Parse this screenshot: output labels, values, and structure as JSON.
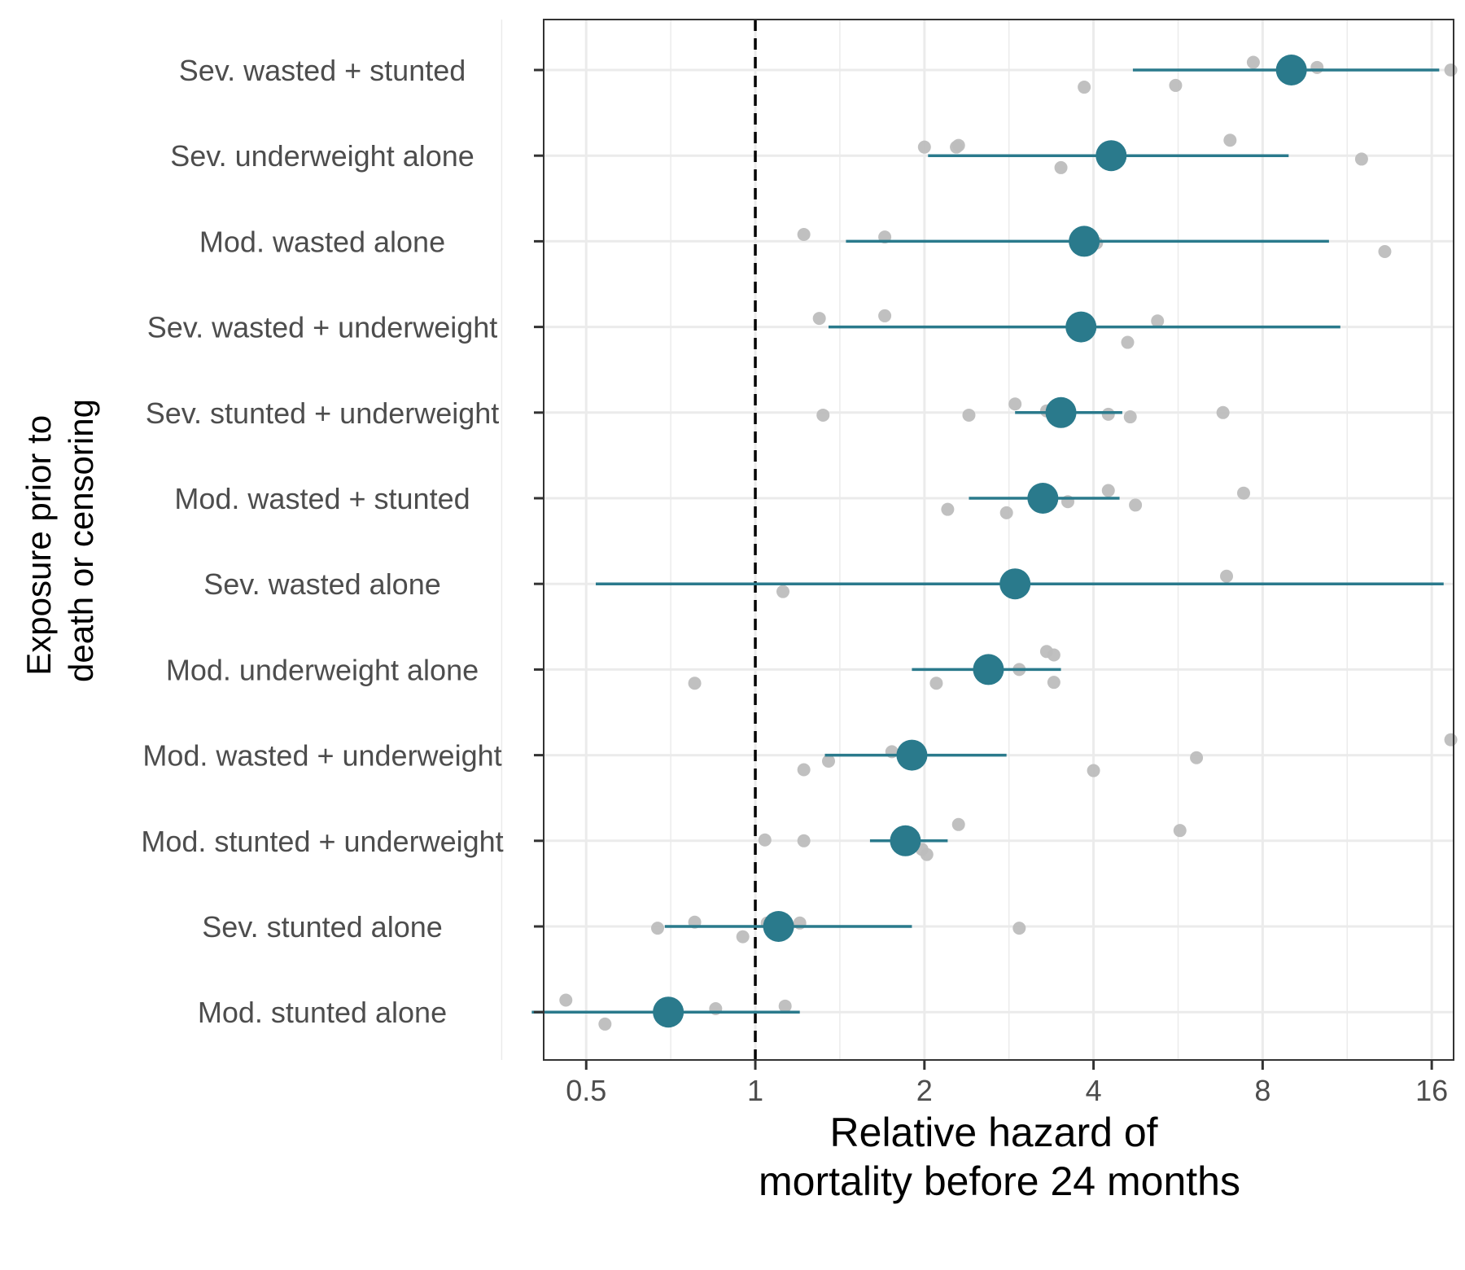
{
  "chart_data": {
    "type": "scatter",
    "x_scale": "log2",
    "xlim": [
      0.42,
      17.5
    ],
    "x_ticks": [
      0.5,
      1,
      2,
      4,
      8,
      16
    ],
    "x_tick_labels": [
      "0.5",
      "1",
      "2",
      "4",
      "8",
      "16"
    ],
    "reference_line_x": 1,
    "xlabel_lines": [
      "Relative hazard of",
      "mortality before 24 months"
    ],
    "ylabel_lines": [
      "Exposure prior to",
      "death or censoring"
    ],
    "grid": true,
    "colors": {
      "estimate": "#2a7a8c",
      "cohort_point": "#bdbdbd",
      "grid": "#ebebeb",
      "panel_border": "#333333"
    },
    "categories": [
      "Sev. wasted + stunted",
      "Sev. underweight alone",
      "Mod. wasted alone",
      "Sev. wasted + underweight",
      "Sev. stunted + underweight",
      "Mod. wasted + stunted",
      "Sev. wasted alone",
      "Mod. underweight alone",
      "Mod. wasted + underweight",
      "Mod. stunted + underweight",
      "Sev. stunted alone",
      "Mod. stunted alone"
    ],
    "estimates": [
      {
        "category": "Sev. wasted + stunted",
        "value": 9.0,
        "lower": 4.7,
        "upper": 16.5
      },
      {
        "category": "Sev. underweight alone",
        "value": 4.3,
        "lower": 2.03,
        "upper": 8.9
      },
      {
        "category": "Mod. wasted alone",
        "value": 3.85,
        "lower": 1.45,
        "upper": 10.5
      },
      {
        "category": "Sev. wasted + underweight",
        "value": 3.8,
        "lower": 1.35,
        "upper": 11.0
      },
      {
        "category": "Sev. stunted + underweight",
        "value": 3.5,
        "lower": 2.9,
        "upper": 4.5
      },
      {
        "category": "Mod. wasted + stunted",
        "value": 3.25,
        "lower": 2.4,
        "upper": 4.45
      },
      {
        "category": "Sev. wasted alone",
        "value": 2.9,
        "lower": 0.52,
        "upper": 16.8
      },
      {
        "category": "Mod. underweight alone",
        "value": 2.6,
        "lower": 1.9,
        "upper": 3.5
      },
      {
        "category": "Mod. wasted + underweight",
        "value": 1.9,
        "lower": 1.33,
        "upper": 2.8
      },
      {
        "category": "Mod. stunted + underweight",
        "value": 1.85,
        "lower": 1.6,
        "upper": 2.2
      },
      {
        "category": "Sev. stunted alone",
        "value": 1.1,
        "lower": 0.69,
        "upper": 1.9
      },
      {
        "category": "Mod. stunted alone",
        "value": 0.7,
        "lower": 0.4,
        "upper": 1.2
      }
    ],
    "cohort_points": [
      {
        "category": "Sev. wasted + stunted",
        "values": [
          {
            "x": 7.7,
            "offset": 0.09
          },
          {
            "x": 10.0,
            "offset": 0.03
          },
          {
            "x": 3.85,
            "offset": -0.2
          },
          {
            "x": 5.6,
            "offset": -0.18
          },
          {
            "x": 17.3,
            "offset": 0.0
          }
        ]
      },
      {
        "category": "Sev. underweight alone",
        "values": [
          {
            "x": 2.0,
            "offset": 0.1
          },
          {
            "x": 2.3,
            "offset": 0.12
          },
          {
            "x": 2.28,
            "offset": 0.1
          },
          {
            "x": 7.0,
            "offset": 0.18
          },
          {
            "x": 3.5,
            "offset": -0.14
          },
          {
            "x": 12.0,
            "offset": -0.04
          }
        ]
      },
      {
        "category": "Mod. wasted alone",
        "values": [
          {
            "x": 1.22,
            "offset": 0.08
          },
          {
            "x": 1.7,
            "offset": 0.05
          },
          {
            "x": 4.05,
            "offset": -0.02
          },
          {
            "x": 13.2,
            "offset": -0.12
          }
        ]
      },
      {
        "category": "Sev. wasted + underweight",
        "values": [
          {
            "x": 1.3,
            "offset": 0.1
          },
          {
            "x": 1.7,
            "offset": 0.13
          },
          {
            "x": 5.2,
            "offset": 0.07
          },
          {
            "x": 4.6,
            "offset": -0.18
          }
        ]
      },
      {
        "category": "Sev. stunted + underweight",
        "values": [
          {
            "x": 1.32,
            "offset": -0.03
          },
          {
            "x": 2.4,
            "offset": -0.03
          },
          {
            "x": 2.9,
            "offset": 0.1
          },
          {
            "x": 3.3,
            "offset": 0.02
          },
          {
            "x": 4.25,
            "offset": -0.02
          },
          {
            "x": 4.65,
            "offset": -0.05
          },
          {
            "x": 6.8,
            "offset": 0.0
          }
        ]
      },
      {
        "category": "Mod. wasted + stunted",
        "values": [
          {
            "x": 2.2,
            "offset": -0.13
          },
          {
            "x": 2.8,
            "offset": -0.17
          },
          {
            "x": 3.6,
            "offset": -0.04
          },
          {
            "x": 4.25,
            "offset": 0.09
          },
          {
            "x": 4.75,
            "offset": -0.08
          },
          {
            "x": 7.4,
            "offset": 0.06
          }
        ]
      },
      {
        "category": "Sev. wasted alone",
        "values": [
          {
            "x": 1.12,
            "offset": -0.09
          },
          {
            "x": 6.9,
            "offset": 0.09
          }
        ]
      },
      {
        "category": "Mod. underweight alone",
        "values": [
          {
            "x": 0.78,
            "offset": -0.16
          },
          {
            "x": 2.1,
            "offset": -0.16
          },
          {
            "x": 2.95,
            "offset": 0.0
          },
          {
            "x": 3.3,
            "offset": 0.21
          },
          {
            "x": 3.4,
            "offset": 0.17
          },
          {
            "x": 3.4,
            "offset": -0.15
          }
        ]
      },
      {
        "category": "Mod. wasted + underweight",
        "values": [
          {
            "x": 1.22,
            "offset": -0.17
          },
          {
            "x": 1.35,
            "offset": -0.07
          },
          {
            "x": 1.75,
            "offset": 0.04
          },
          {
            "x": 4.0,
            "offset": -0.18
          },
          {
            "x": 6.1,
            "offset": -0.03
          },
          {
            "x": 17.3,
            "offset": 0.18
          }
        ]
      },
      {
        "category": "Mod. stunted + underweight",
        "values": [
          {
            "x": 1.04,
            "offset": 0.01
          },
          {
            "x": 1.22,
            "offset": 0.0
          },
          {
            "x": 2.02,
            "offset": -0.16
          },
          {
            "x": 1.98,
            "offset": -0.1
          },
          {
            "x": 2.3,
            "offset": 0.19
          },
          {
            "x": 5.7,
            "offset": 0.12
          }
        ]
      },
      {
        "category": "Sev. stunted alone",
        "values": [
          {
            "x": 0.67,
            "offset": -0.02
          },
          {
            "x": 0.78,
            "offset": 0.05
          },
          {
            "x": 0.95,
            "offset": -0.12
          },
          {
            "x": 1.05,
            "offset": 0.04
          },
          {
            "x": 1.2,
            "offset": 0.04
          },
          {
            "x": 2.95,
            "offset": -0.02
          }
        ]
      },
      {
        "category": "Mod. stunted alone",
        "values": [
          {
            "x": 0.46,
            "offset": 0.14
          },
          {
            "x": 0.54,
            "offset": -0.14
          },
          {
            "x": 0.85,
            "offset": 0.04
          },
          {
            "x": 1.13,
            "offset": 0.07
          }
        ]
      }
    ]
  }
}
